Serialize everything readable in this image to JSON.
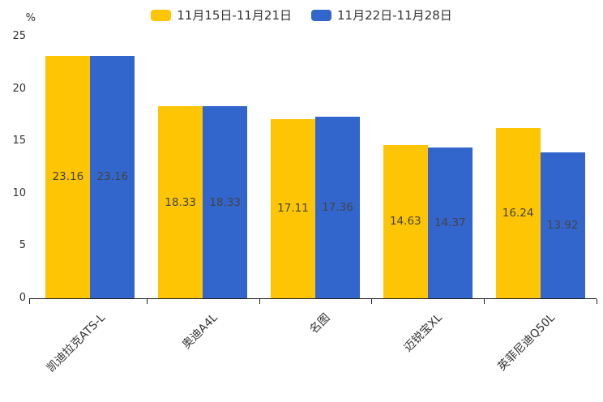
{
  "chart_data": {
    "type": "bar",
    "title": "",
    "ylabel": "%",
    "ylim": [
      0,
      25
    ],
    "yticks": [
      0,
      5,
      10,
      15,
      20,
      25
    ],
    "grid": false,
    "legend_position": "top-center",
    "categories": [
      "凯迪拉克ATS-L",
      "奥迪A4L",
      "名图",
      "迈锐宝XL",
      "英菲尼迪Q50L"
    ],
    "series": [
      {
        "name": "11月15日-11月21日",
        "color": "#FDC504",
        "values": [
          23.16,
          18.33,
          17.11,
          14.63,
          16.24
        ]
      },
      {
        "name": "11月22日-11月28日",
        "color": "#3366CC",
        "values": [
          23.16,
          18.33,
          17.36,
          14.37,
          13.92
        ]
      }
    ],
    "value_label_decimals": 2
  },
  "colors": {
    "axis": "#222222",
    "tick_text": "#333333",
    "value_text": "#444444"
  }
}
